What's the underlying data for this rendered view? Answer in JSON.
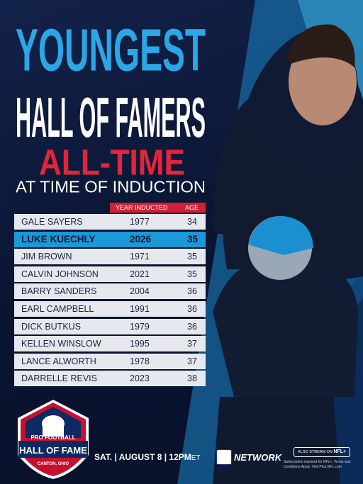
{
  "title": {
    "line1": "YOUNGEST",
    "line2": "HALL OF FAMERS",
    "line3": "ALL-TIME",
    "line4": "AT TIME OF INDUCTION"
  },
  "table": {
    "columns": [
      "YEAR INDUCTED",
      "AGE"
    ],
    "highlighted_row": 1,
    "rows": [
      [
        "GALE SAYERS",
        1977,
        34
      ],
      [
        "LUKE KUECHLY",
        2026,
        35
      ],
      [
        "JIM BROWN",
        1971,
        35
      ],
      [
        "CALVIN JOHNSON",
        2021,
        35
      ],
      [
        "BARRY SANDERS",
        2004,
        36
      ],
      [
        "EARL CAMPBELL",
        1991,
        36
      ],
      [
        "DICK BUTKUS",
        1979,
        36
      ],
      [
        "KELLEN WINSLOW",
        1995,
        37
      ],
      [
        "LANCE ALWORTH",
        1978,
        37
      ],
      [
        "DARRELLE REVIS",
        2023,
        38
      ]
    ]
  },
  "logo": {
    "top": "PRO FOOTBALL",
    "main": "HALL OF FAME",
    "bottom": "CANTON, OHIO"
  },
  "footer": {
    "schedule": "SAT. | AUGUST 8 | 12PM",
    "timezone": "ET",
    "network": "NETWORK",
    "stream": "ALSO STREAM ON",
    "stream_brand": "NFL+",
    "disclaimer": "Subscription required for NFL+. Terms and Conditions Apply. Visit Plus.NFL.com"
  }
}
